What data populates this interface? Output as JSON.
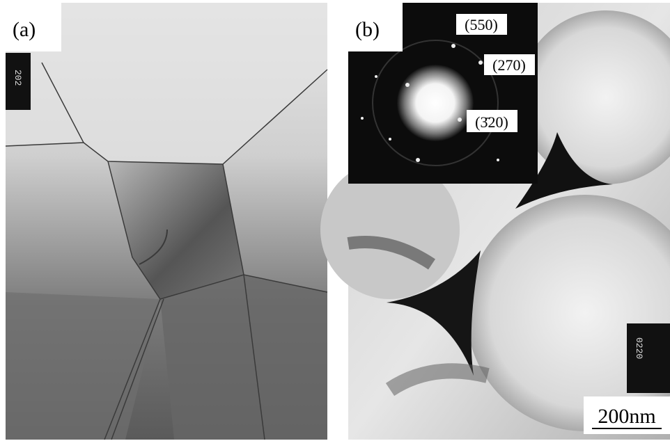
{
  "panels": [
    {
      "label": "(a)",
      "film_number": "202"
    },
    {
      "label": "(b)",
      "film_number": "0220",
      "diffraction_labels": [
        "(550)",
        "(270)",
        "(3̄20)"
      ],
      "scale_bar": "200nm"
    }
  ]
}
